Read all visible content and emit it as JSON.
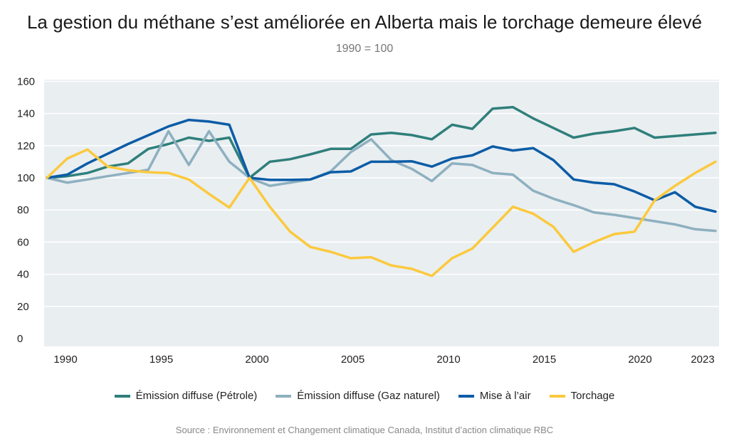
{
  "chart_data": {
    "type": "line",
    "title": "La gestion du méthane s’est améliorée en Alberta mais le torchage demeure élevé",
    "subtitle": "1990 = 100",
    "xlabel": "",
    "ylabel": "",
    "ylim": [
      0,
      160
    ],
    "yticks": [
      0,
      20,
      40,
      60,
      80,
      100,
      120,
      140,
      160
    ],
    "xticks": [
      1990,
      1995,
      2000,
      2005,
      2010,
      2015,
      2020,
      2023
    ],
    "grid": true,
    "legend_position": "bottom",
    "x": [
      1990,
      1991,
      1992,
      1993,
      1994,
      1995,
      1996,
      1997,
      1998,
      1999,
      2000,
      2001,
      2002,
      2003,
      2004,
      2005,
      2006,
      2007,
      2008,
      2009,
      2010,
      2011,
      2012,
      2013,
      2014,
      2015,
      2016,
      2017,
      2018,
      2019,
      2020,
      2021,
      2022,
      2023
    ],
    "series": [
      {
        "name": "Émission diffuse (Pétrole)",
        "color": "#2f7f7b",
        "values": [
          100,
          101,
          103,
          107,
          109,
          118,
          121,
          125,
          123,
          125,
          100,
          110,
          111.6,
          114.6,
          118,
          118,
          127,
          128,
          126.6,
          124,
          133,
          130.5,
          143,
          144,
          137,
          131,
          125,
          127.5,
          129,
          131,
          125,
          126,
          127,
          128
        ]
      },
      {
        "name": "Émission diffuse (Gaz naturel)",
        "color": "#8eb0c0",
        "values": [
          100,
          97,
          99,
          101,
          103,
          105,
          129,
          108,
          129,
          110,
          100,
          95,
          97,
          99,
          104,
          116,
          124,
          111,
          105.6,
          98,
          109,
          108,
          103,
          102,
          92,
          87,
          83,
          78.5,
          77,
          75,
          73,
          71,
          68,
          67
        ]
      },
      {
        "name": "Mise à l’air",
        "color": "#0b5ca6",
        "values": [
          100,
          102,
          109,
          115,
          121,
          126.5,
          132,
          136,
          135,
          133,
          100,
          98.7,
          98.7,
          99,
          103.5,
          104,
          110,
          110,
          110.3,
          107,
          112,
          114,
          119.5,
          117,
          118.5,
          111,
          99,
          97,
          96,
          91.5,
          86,
          91,
          82,
          79
        ]
      },
      {
        "name": "Torchage",
        "color": "#fbc93d",
        "values": [
          100,
          112,
          117.6,
          107,
          104.7,
          103.5,
          103,
          99,
          90,
          81.5,
          100,
          82,
          66.5,
          57,
          54,
          50,
          50.6,
          45.5,
          43.4,
          39,
          50,
          56,
          69,
          82,
          77.7,
          69.5,
          54,
          60,
          65,
          66.5,
          86,
          95,
          103,
          110
        ]
      }
    ]
  },
  "source": "Source : Environnement et Changement climatique Canada, Institut d’action climatique RBC",
  "colors": {
    "plot_bg": "#e9eef1",
    "grid": "#ffffff"
  }
}
